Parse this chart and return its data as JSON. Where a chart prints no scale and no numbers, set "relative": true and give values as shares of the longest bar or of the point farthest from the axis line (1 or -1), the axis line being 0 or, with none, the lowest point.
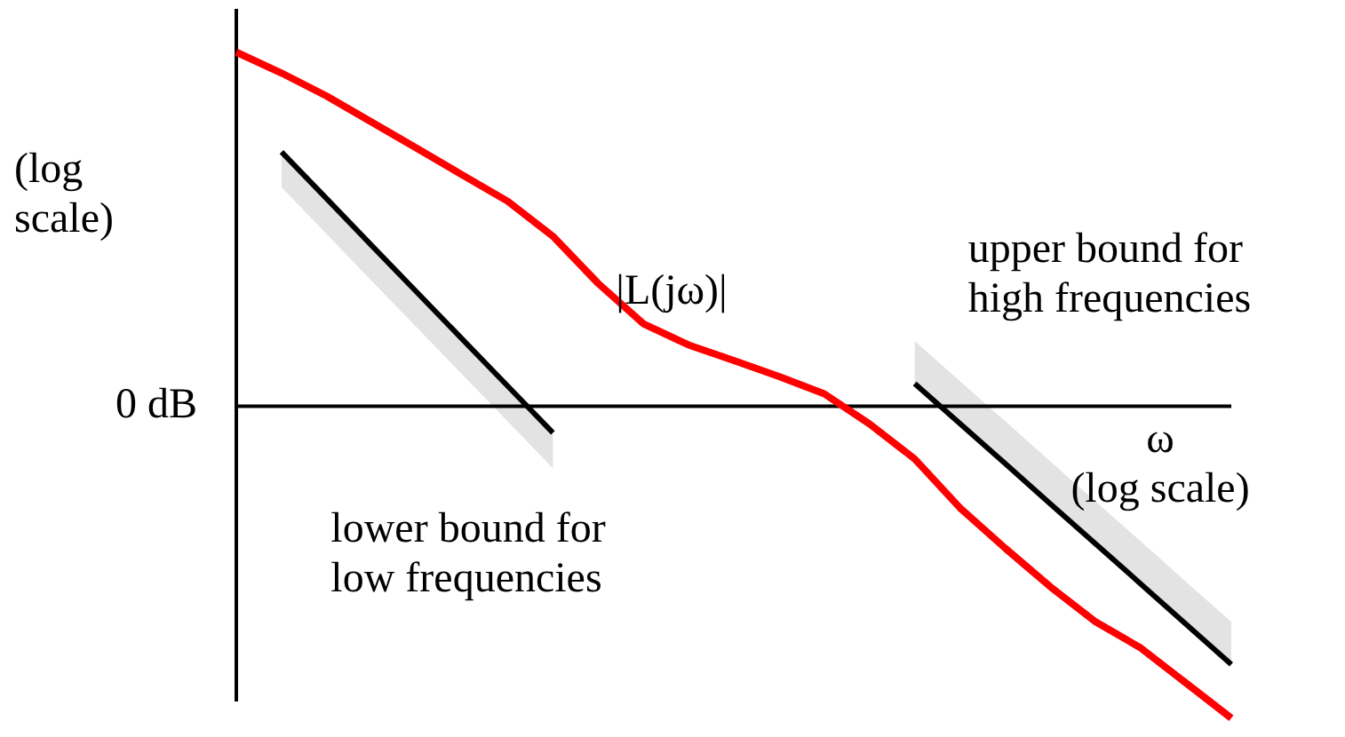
{
  "chart_data": {
    "type": "line",
    "relative": true,
    "xlabel": "ω\n(log scale)",
    "ylabel": "(log\nscale)",
    "categories": [
      null,
      null,
      null,
      null,
      null,
      null,
      null,
      null,
      null,
      null,
      null,
      null,
      null,
      null,
      null,
      null,
      null,
      null,
      null,
      null,
      null,
      null,
      null
    ],
    "series": [
      {
        "name": "|L(jω)|",
        "color": "#ff0000",
        "values": [
          1,
          0.941,
          0.876,
          0.802,
          0.728,
          0.653,
          0.579,
          0.48,
          0.347,
          0.233,
          0.173,
          0.129,
          0.084,
          0.035,
          -0.05,
          -0.149,
          -0.287,
          -0.401,
          -0.51,
          -0.609,
          -0.683,
          -0.782,
          -0.881
        ]
      },
      {
        "name": "lower bound for\nlow frequencies",
        "color": "#000000",
        "values": [
          null,
          0.718,
          0.586,
          0.453,
          0.321,
          0.189,
          0.057,
          -0.075,
          null,
          null,
          null,
          null,
          null,
          null,
          null,
          null,
          null,
          null,
          null,
          null,
          null,
          null,
          null
        ],
        "lower": [
          null,
          0.618,
          0.486,
          0.353,
          0.221,
          0.089,
          -0.043,
          -0.175,
          null,
          null,
          null,
          null,
          null,
          null,
          null,
          null,
          null,
          null,
          null,
          null,
          null,
          null,
          null
        ],
        "upper": [
          null,
          0.718,
          0.586,
          0.453,
          0.321,
          0.189,
          0.057,
          -0.075,
          null,
          null,
          null,
          null,
          null,
          null,
          null,
          null,
          null,
          null,
          null,
          null,
          null,
          null,
          null
        ]
      },
      {
        "name": "upper bound for\nhigh frequencies",
        "color": "#000000",
        "values": [
          null,
          null,
          null,
          null,
          null,
          null,
          null,
          null,
          null,
          null,
          null,
          null,
          null,
          null,
          null,
          0.064,
          -0.049,
          -0.162,
          -0.276,
          -0.389,
          -0.502,
          -0.616,
          -0.729
        ],
        "lower": [
          null,
          null,
          null,
          null,
          null,
          null,
          null,
          null,
          null,
          null,
          null,
          null,
          null,
          null,
          null,
          0.064,
          -0.049,
          -0.162,
          -0.276,
          -0.389,
          -0.502,
          -0.616,
          -0.729
        ],
        "upper": [
          null,
          null,
          null,
          null,
          null,
          null,
          null,
          null,
          null,
          null,
          null,
          null,
          null,
          null,
          null,
          0.184,
          0.071,
          -0.042,
          -0.156,
          -0.269,
          -0.382,
          -0.496,
          -0.609
        ]
      }
    ],
    "ref_lines": [
      {
        "axis": "y",
        "value": 0,
        "label": "0 dB"
      }
    ],
    "legend": false,
    "marker": "none",
    "line_style": "solid"
  }
}
